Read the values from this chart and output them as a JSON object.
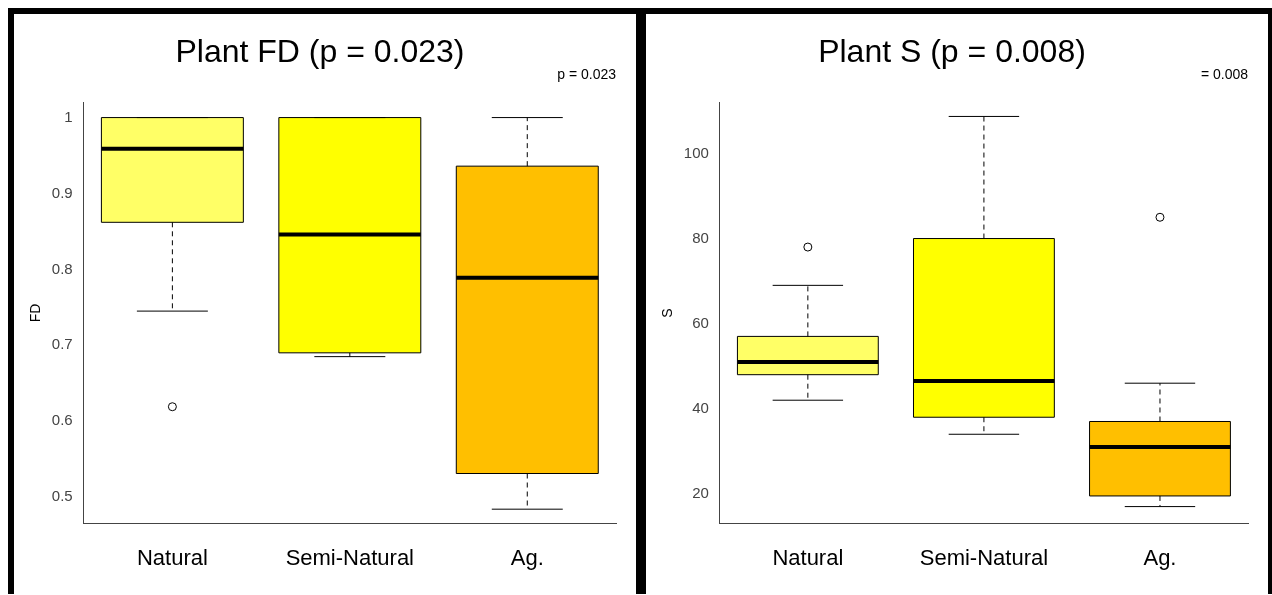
{
  "chart_data": [
    {
      "type": "box",
      "title": "Plant FD (p = 0.023)",
      "ylabel": "FD",
      "categories": [
        "Natural",
        "Semi-Natural",
        "Ag."
      ],
      "colors": [
        "#ffff66",
        "#ffff00",
        "#ffbf00"
      ],
      "ylim": [
        0.465,
        1.02
      ],
      "yticks": [
        0.5,
        0.6,
        0.7,
        0.8,
        0.9,
        1.0
      ],
      "annotations": [
        "p = 0.023"
      ],
      "boxes": [
        {
          "low": 0.745,
          "q1": 0.862,
          "median": 0.959,
          "q3": 1.0,
          "high": 1.0,
          "outliers": [
            0.619
          ]
        },
        {
          "low": 0.685,
          "q1": 0.69,
          "median": 0.846,
          "q3": 1.0,
          "high": 1.0
        },
        {
          "low": 0.484,
          "q1": 0.531,
          "median": 0.789,
          "q3": 0.936,
          "high": 1.0
        }
      ]
    },
    {
      "type": "box",
      "title": "Plant S (p = 0.008)",
      "ylabel": "S",
      "categories": [
        "Natural",
        "Semi-Natural",
        "Ag."
      ],
      "colors": [
        "#ffff66",
        "#ffff00",
        "#ffbf00"
      ],
      "ylim": [
        13,
        112
      ],
      "yticks": [
        20,
        40,
        60,
        80,
        100
      ],
      "annotations": [
        "= 0.008"
      ],
      "boxes": [
        {
          "low": 42,
          "q1": 48,
          "median": 51,
          "q3": 57,
          "high": 69,
          "outliers": [
            78
          ]
        },
        {
          "low": 34,
          "q1": 38,
          "median": 46.5,
          "q3": 80,
          "high": 108.7
        },
        {
          "low": 17,
          "q1": 19.5,
          "median": 31,
          "q3": 37,
          "high": 46,
          "outliers": [
            85
          ]
        }
      ]
    }
  ]
}
